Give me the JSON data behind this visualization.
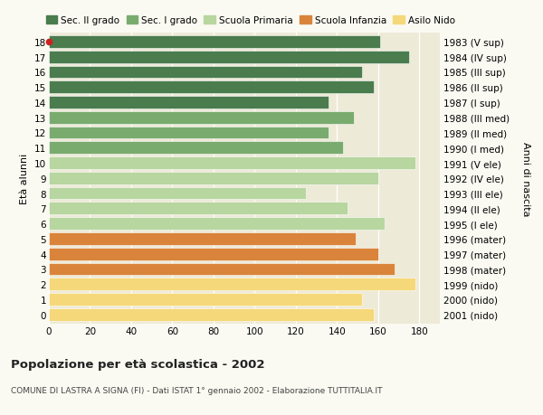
{
  "ages": [
    18,
    17,
    16,
    15,
    14,
    13,
    12,
    11,
    10,
    9,
    8,
    7,
    6,
    5,
    4,
    3,
    2,
    1,
    0
  ],
  "years": [
    "1983 (V sup)",
    "1984 (IV sup)",
    "1985 (III sup)",
    "1986 (II sup)",
    "1987 (I sup)",
    "1988 (III med)",
    "1989 (II med)",
    "1990 (I med)",
    "1991 (V ele)",
    "1992 (IV ele)",
    "1993 (III ele)",
    "1994 (II ele)",
    "1995 (I ele)",
    "1996 (mater)",
    "1997 (mater)",
    "1998 (mater)",
    "1999 (nido)",
    "2000 (nido)",
    "2001 (nido)"
  ],
  "values": [
    161,
    175,
    152,
    158,
    136,
    148,
    136,
    143,
    178,
    160,
    125,
    145,
    163,
    149,
    160,
    168,
    178,
    152,
    158
  ],
  "colors": [
    "#4a7c4e",
    "#4a7c4e",
    "#4a7c4e",
    "#4a7c4e",
    "#4a7c4e",
    "#7aab6e",
    "#7aab6e",
    "#7aab6e",
    "#b8d6a0",
    "#b8d6a0",
    "#b8d6a0",
    "#b8d6a0",
    "#b8d6a0",
    "#d9843a",
    "#d9843a",
    "#d9843a",
    "#f5d87a",
    "#f5d87a",
    "#f5d87a"
  ],
  "legend_labels": [
    "Sec. II grado",
    "Sec. I grado",
    "Scuola Primaria",
    "Scuola Infanzia",
    "Asilo Nido"
  ],
  "legend_colors": [
    "#4a7c4e",
    "#7aab6e",
    "#b8d6a0",
    "#d9843a",
    "#f5d87a"
  ],
  "title": "Popolazione per età scolastica - 2002",
  "subtitle": "COMUNE DI LASTRA A SIGNA (FI) - Dati ISTAT 1° gennaio 2002 - Elaborazione TUTTITALIA.IT",
  "ylabel_left": "Età alunni",
  "ylabel_right": "Anni di nascita",
  "xlim": [
    0,
    190
  ],
  "xticks": [
    0,
    20,
    40,
    60,
    80,
    100,
    120,
    140,
    160,
    180
  ],
  "bg_color": "#fafaf2",
  "bar_bg_color": "#eeead8",
  "red_dot_age": 18,
  "bar_height": 0.82
}
